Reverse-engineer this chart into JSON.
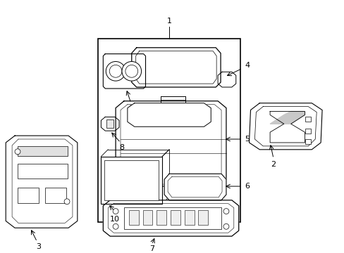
{
  "bg": "#ffffff",
  "lc": "#000000",
  "fw": 4.89,
  "fh": 3.6,
  "dpi": 100
}
